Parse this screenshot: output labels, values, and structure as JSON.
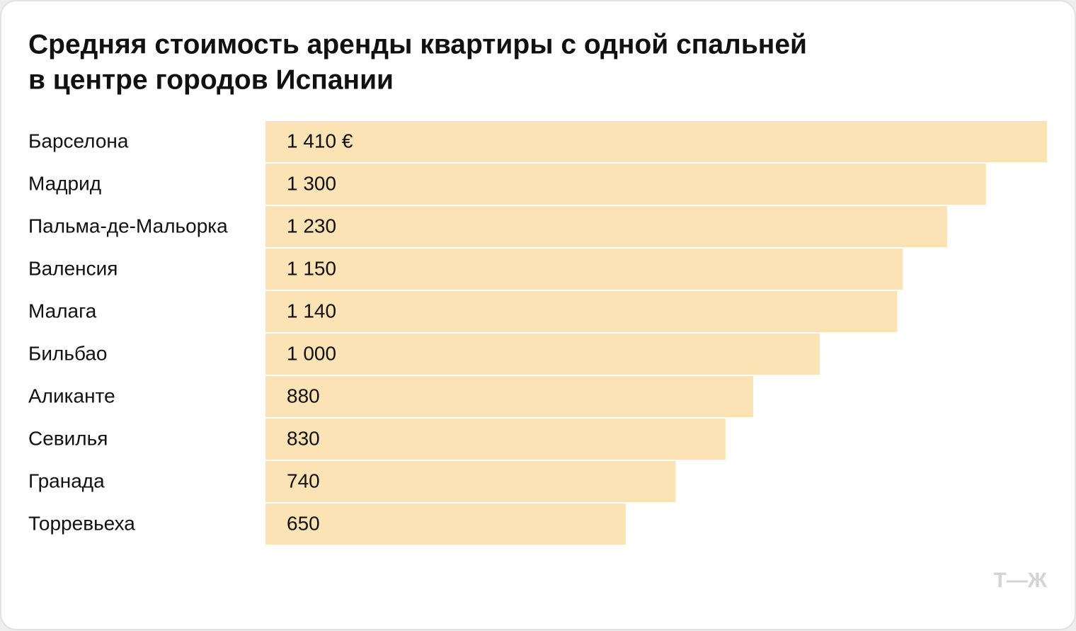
{
  "chart_data": {
    "type": "bar",
    "orientation": "horizontal",
    "title": [
      "Средняя стоимость аренды квартиры с одной спальней",
      "в центре городов Испании"
    ],
    "categories": [
      "Барселона",
      "Мадрид",
      "Пальма-де-Мальорка",
      "Валенсия",
      "Малага",
      "Бильбао",
      "Аликанте",
      "Севилья",
      "Гранада",
      "Торревьеха"
    ],
    "values": [
      1410,
      1300,
      1230,
      1150,
      1140,
      1000,
      880,
      830,
      740,
      650
    ],
    "value_labels": [
      "1 410 €",
      "1 300",
      "1 230",
      "1 150",
      "1 140",
      "1 000",
      "880",
      "830",
      "740",
      "650"
    ],
    "color": "#fce3b6",
    "logo": "Т—Ж"
  }
}
